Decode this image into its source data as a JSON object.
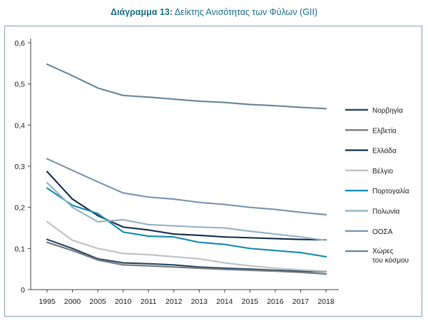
{
  "title_bold": "Διάγραμμα 13:",
  "title_rest": "Δείκτης Ανισότητας των Φύλων (GII)",
  "chart_data": {
    "type": "line",
    "title": "Διάγραμμα 13: Δείκτης Ανισότητας των Φύλων (GII)",
    "xlabel": "",
    "ylabel": "",
    "ylim": [
      0,
      0.6
    ],
    "yticks": [
      "0",
      "0,1",
      "0,2",
      "0,3",
      "0,4",
      "0,5",
      "0,6"
    ],
    "categories": [
      "1995",
      "2000",
      "2005",
      "2010",
      "2011",
      "2012",
      "2013",
      "2014",
      "2015",
      "2016",
      "2017",
      "2018"
    ],
    "grid": false,
    "legend_position": "right",
    "series": [
      {
        "name": "Νορβηγία",
        "color": "#2e4f6e",
        "values": [
          0.122,
          0.1,
          0.075,
          0.065,
          0.063,
          0.06,
          0.055,
          0.052,
          0.05,
          0.047,
          0.045,
          0.044
        ]
      },
      {
        "name": "Ελβετία",
        "color": "#7b7e80",
        "values": [
          0.115,
          0.095,
          0.072,
          0.06,
          0.058,
          0.055,
          0.052,
          0.049,
          0.047,
          0.045,
          0.042,
          0.038
        ]
      },
      {
        "name": "Ελλάδα",
        "color": "#1f3a56",
        "values": [
          0.287,
          0.22,
          0.18,
          0.152,
          0.145,
          0.135,
          0.132,
          0.128,
          0.126,
          0.124,
          0.122,
          0.121
        ]
      },
      {
        "name": "Βέλγιο",
        "color": "#c2c4c6",
        "values": [
          0.165,
          0.12,
          0.1,
          0.088,
          0.085,
          0.08,
          0.075,
          0.065,
          0.058,
          0.052,
          0.048,
          0.045
        ]
      },
      {
        "name": "Πορτογαλία",
        "color": "#1e91b4",
        "values": [
          0.247,
          0.205,
          0.185,
          0.14,
          0.13,
          0.128,
          0.115,
          0.11,
          0.1,
          0.095,
          0.09,
          0.08
        ]
      },
      {
        "name": "Πολωνία",
        "color": "#9cb6c8",
        "values": [
          0.26,
          0.2,
          0.165,
          0.17,
          0.158,
          0.155,
          0.152,
          0.15,
          0.142,
          0.135,
          0.128,
          0.12
        ]
      },
      {
        "name": "ΟΟΣΑ",
        "color": "#7d9ab6",
        "values": [
          0.318,
          0.29,
          0.262,
          0.235,
          0.225,
          0.22,
          0.212,
          0.207,
          0.2,
          0.195,
          0.188,
          0.182
        ]
      },
      {
        "name": "Χώρες του κόσμου",
        "color": "#6e8da3",
        "values": [
          0.548,
          0.52,
          0.49,
          0.472,
          0.468,
          0.463,
          0.458,
          0.455,
          0.45,
          0.447,
          0.443,
          0.44
        ]
      }
    ]
  }
}
